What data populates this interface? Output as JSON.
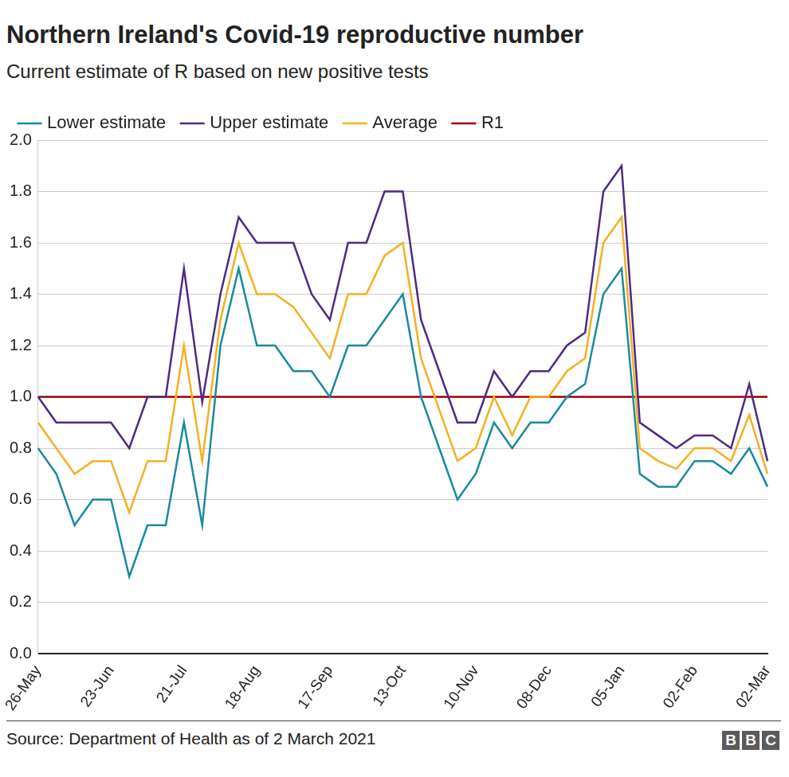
{
  "chart_data": {
    "type": "line",
    "title": "Northern Ireland's Covid-19 reproductive number",
    "subtitle": "Current estimate of R based on new positive tests",
    "source": "Source: Department of Health as of 2 March 2021",
    "logo": "BBC",
    "categories": [
      "26-May",
      null,
      null,
      null,
      "23-Jun",
      null,
      null,
      null,
      "21-Jul",
      null,
      null,
      null,
      "18-Aug",
      null,
      null,
      null,
      "17-Sep",
      null,
      null,
      null,
      "13-Oct",
      null,
      null,
      null,
      "10-Nov",
      null,
      null,
      null,
      "08-Dec",
      null,
      null,
      null,
      "05-Jan",
      null,
      null,
      null,
      "02-Feb",
      null,
      null,
      null,
      "02-Mar"
    ],
    "series": [
      {
        "name": "Lower estimate",
        "color": "#1a8aa0",
        "values": [
          0.8,
          0.7,
          0.5,
          0.6,
          0.6,
          0.3,
          0.5,
          0.5,
          0.9,
          0.5,
          1.2,
          1.5,
          1.2,
          1.2,
          1.1,
          1.1,
          1.0,
          1.2,
          1.2,
          1.3,
          1.4,
          1.0,
          0.8,
          0.6,
          0.7,
          0.9,
          0.8,
          0.9,
          0.9,
          1.0,
          1.05,
          1.4,
          1.5,
          0.7,
          0.65,
          0.65,
          0.75,
          0.75,
          0.7,
          0.8,
          0.65
        ]
      },
      {
        "name": "Upper estimate",
        "color": "#4e2a84",
        "values": [
          1.0,
          0.9,
          0.9,
          0.9,
          0.9,
          0.8,
          1.0,
          1.0,
          1.5,
          0.98,
          1.4,
          1.7,
          1.6,
          1.6,
          1.6,
          1.4,
          1.3,
          1.6,
          1.6,
          1.8,
          1.8,
          1.3,
          1.1,
          0.9,
          0.9,
          1.1,
          1.0,
          1.1,
          1.1,
          1.2,
          1.25,
          1.8,
          1.9,
          0.9,
          0.85,
          0.8,
          0.85,
          0.85,
          0.8,
          1.05,
          0.75
        ]
      },
      {
        "name": "Average",
        "color": "#f5b021",
        "values": [
          0.9,
          0.8,
          0.7,
          0.75,
          0.75,
          0.55,
          0.75,
          0.75,
          1.2,
          0.75,
          1.3,
          1.6,
          1.4,
          1.4,
          1.35,
          1.25,
          1.15,
          1.4,
          1.4,
          1.55,
          1.6,
          1.15,
          0.95,
          0.75,
          0.8,
          1.0,
          0.85,
          1.0,
          1.0,
          1.1,
          1.15,
          1.6,
          1.7,
          0.8,
          0.75,
          0.72,
          0.8,
          0.8,
          0.75,
          0.93,
          0.7
        ]
      },
      {
        "name": "R1",
        "color": "#990000",
        "values": [
          1.0,
          1.0,
          1.0,
          1.0,
          1.0,
          1.0,
          1.0,
          1.0,
          1.0,
          1.0,
          1.0,
          1.0,
          1.0,
          1.0,
          1.0,
          1.0,
          1.0,
          1.0,
          1.0,
          1.0,
          1.0,
          1.0,
          1.0,
          1.0,
          1.0,
          1.0,
          1.0,
          1.0,
          1.0,
          1.0,
          1.0,
          1.0,
          1.0,
          1.0,
          1.0,
          1.0,
          1.0,
          1.0,
          1.0,
          1.0,
          1.0
        ]
      }
    ],
    "ylim": [
      0,
      2
    ],
    "yticks": [
      {
        "value": 0,
        "label": "0.0"
      },
      0.2,
      0.4,
      0.6,
      0.8,
      {
        "value": 1,
        "label": "1.0"
      },
      1.2,
      1.4,
      1.6,
      1.8,
      {
        "value": 2,
        "label": "2.0"
      }
    ],
    "grid": true,
    "legend": "top-left"
  }
}
